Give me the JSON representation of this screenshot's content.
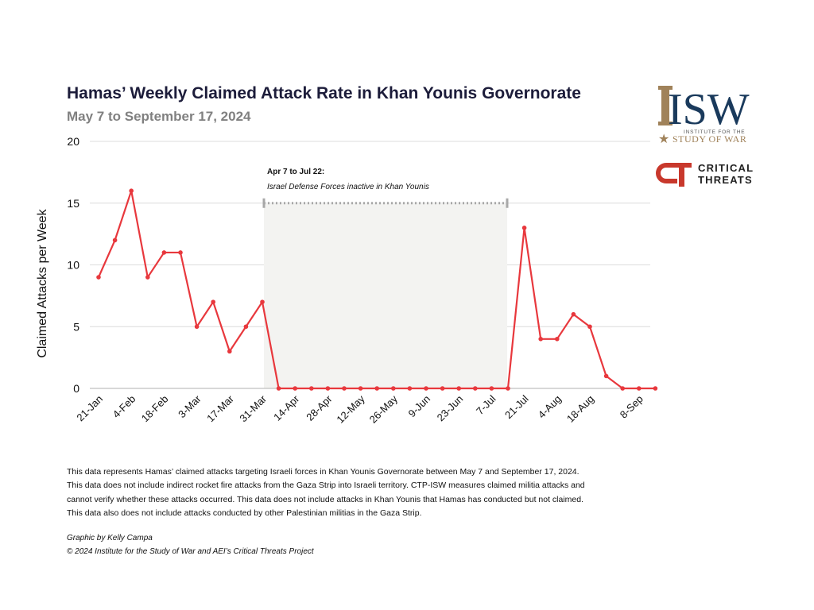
{
  "header": {
    "title": "Hamas’ Weekly Claimed Attack Rate in Khan Younis Governorate",
    "subtitle": "May 7 to September 17, 2024"
  },
  "chart_data": {
    "type": "line",
    "title": "Hamas’ Weekly Claimed Attack Rate in Khan Younis Governorate",
    "subtitle": "May 7 to September 17, 2024",
    "xlabel": "",
    "ylabel": "Claimed Attacks per Week",
    "ylim": [
      0,
      20
    ],
    "yticks": [
      0,
      5,
      10,
      15,
      20
    ],
    "grid": "horizontal",
    "x": [
      "21-Jan",
      "28-Jan",
      "4-Feb",
      "11-Feb",
      "18-Feb",
      "25-Feb",
      "3-Mar",
      "10-Mar",
      "17-Mar",
      "24-Mar",
      "31-Mar",
      "7-Apr",
      "14-Apr",
      "21-Apr",
      "28-Apr",
      "5-May",
      "12-May",
      "19-May",
      "26-May",
      "2-Jun",
      "9-Jun",
      "16-Jun",
      "23-Jun",
      "30-Jun",
      "7-Jul",
      "14-Jul",
      "21-Jul",
      "28-Jul",
      "4-Aug",
      "11-Aug",
      "18-Aug",
      "25-Aug",
      "1-Sep",
      "8-Sep",
      "15-Sep"
    ],
    "xtick_labels": [
      "21-Jan",
      "4-Feb",
      "18-Feb",
      "3-Mar",
      "17-Mar",
      "31-Mar",
      "14-Apr",
      "28-Apr",
      "12-May",
      "26-May",
      "9-Jun",
      "23-Jun",
      "7-Jul",
      "21-Jul",
      "4-Aug",
      "18-Aug",
      "8-Sep"
    ],
    "series": [
      {
        "values": [
          9,
          12,
          16,
          9,
          11,
          11,
          5,
          7,
          3,
          5,
          7,
          0,
          0,
          0,
          0,
          0,
          0,
          0,
          0,
          0,
          0,
          0,
          0,
          0,
          0,
          0,
          13,
          4,
          4,
          6,
          5,
          1,
          0,
          0,
          0
        ],
        "color": "#e8383d"
      }
    ],
    "annotation": {
      "title": "Apr 7 to Jul 22:",
      "text": "Israel Defense Forces inactive in Khan Younis",
      "start": "31-Mar",
      "end": "14-Jul",
      "level": 15
    }
  },
  "footnote": {
    "lines": [
      "This data represents Hamas’ claimed attacks targeting Israeli forces in Khan Younis Governorate between May 7 and September 17, 2024.",
      "This data does not include indirect rocket fire attacks from the Gaza Strip into Israeli territory. CTP-ISW measures claimed militia attacks and",
      "cannot verify whether these attacks occurred. This data does not include attacks in Khan Younis that Hamas has conducted but not claimed.",
      "This data also does not include attacks conducted by other Palestinian militias in the Gaza Strip."
    ],
    "credit": "Graphic by Kelly Campa",
    "copyright": "© 2024 Institute for the Study of War and AEI’s Critical Threats Project"
  },
  "logos": {
    "isw": {
      "mark": "ISW",
      "line1": "INSTITUTE FOR THE",
      "line2": "STUDY OF WAR",
      "color": "#1a3a5c",
      "gold": "#a0825a"
    },
    "ct": {
      "mark": "CT",
      "line1": "CRITICAL",
      "line2": "THREATS",
      "color": "#c8382c"
    }
  }
}
